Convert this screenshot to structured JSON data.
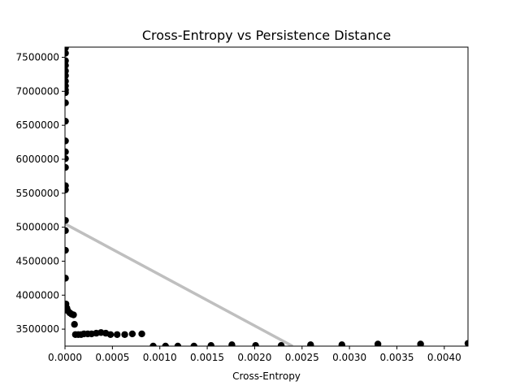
{
  "chart_data": {
    "type": "scatter",
    "title": "Cross-Entropy vs Persistence Distance",
    "xlabel": "Cross-Entropy",
    "ylabel": "",
    "xlim": [
      0,
      0.00425
    ],
    "ylim": [
      3250000,
      7650000
    ],
    "grid": false,
    "x_ticks": [
      0,
      0.0005,
      0.001,
      0.0015,
      0.002,
      0.0025,
      0.003,
      0.0035,
      0.004
    ],
    "x_tick_labels": [
      "0.0000",
      "0.0005",
      "0.0010",
      "0.0015",
      "0.0020",
      "0.0025",
      "0.0030",
      "0.0035",
      "0.0040"
    ],
    "y_ticks": [
      3500000,
      4000000,
      4500000,
      5000000,
      5500000,
      6000000,
      6500000,
      7000000,
      7500000
    ],
    "y_tick_labels": [
      "3500000",
      "4000000",
      "4500000",
      "5000000",
      "5500000",
      "6000000",
      "6500000",
      "7000000",
      "7500000"
    ],
    "point_color": "#000000",
    "trend_color": "#bfbfbf",
    "trendline": {
      "x": [
        0,
        0.0024
      ],
      "y": [
        5050000,
        3250000
      ]
    },
    "series": [
      {
        "points": [
          [
            5e-06,
            7640000
          ],
          [
            5e-06,
            7560000
          ],
          [
            5e-06,
            7450000
          ],
          [
            5e-06,
            7380000
          ],
          [
            5e-06,
            7300000
          ],
          [
            5e-06,
            7230000
          ],
          [
            5e-06,
            7150000
          ],
          [
            5e-06,
            7080000
          ],
          [
            5e-06,
            7020000
          ],
          [
            5e-06,
            6980000
          ],
          [
            5e-06,
            6830000
          ],
          [
            5e-06,
            6560000
          ],
          [
            5e-06,
            6270000
          ],
          [
            5e-06,
            6110000
          ],
          [
            5e-06,
            6010000
          ],
          [
            5e-06,
            5880000
          ],
          [
            5e-06,
            5610000
          ],
          [
            5e-06,
            5550000
          ],
          [
            5e-06,
            5100000
          ],
          [
            5e-06,
            4950000
          ],
          [
            5e-06,
            4660000
          ],
          [
            5e-06,
            4250000
          ],
          [
            1e-05,
            3870000
          ],
          [
            2e-05,
            3810000
          ],
          [
            3e-05,
            3770000
          ],
          [
            5e-05,
            3740000
          ],
          [
            7e-05,
            3720000
          ],
          [
            9e-05,
            3710000
          ],
          [
            0.0001,
            3570000
          ],
          [
            0.00011,
            3420000
          ],
          [
            0.00014,
            3420000
          ],
          [
            0.00017,
            3420000
          ],
          [
            0.0002,
            3430000
          ],
          [
            0.00024,
            3430000
          ],
          [
            0.00028,
            3430000
          ],
          [
            0.00033,
            3440000
          ],
          [
            0.00038,
            3450000
          ],
          [
            0.00043,
            3440000
          ],
          [
            0.00048,
            3420000
          ],
          [
            0.00055,
            3420000
          ],
          [
            0.00063,
            3420000
          ],
          [
            0.00071,
            3430000
          ],
          [
            0.00081,
            3430000
          ],
          [
            0.00093,
            3250000
          ],
          [
            0.00106,
            3250000
          ],
          [
            0.00119,
            3250000
          ],
          [
            0.00136,
            3250000
          ],
          [
            0.00154,
            3260000
          ],
          [
            0.00176,
            3270000
          ],
          [
            0.00201,
            3260000
          ],
          [
            0.00228,
            3260000
          ],
          [
            0.00259,
            3270000
          ],
          [
            0.00292,
            3270000
          ],
          [
            0.0033,
            3280000
          ],
          [
            0.00375,
            3280000
          ],
          [
            0.00425,
            3290000
          ]
        ]
      }
    ]
  }
}
